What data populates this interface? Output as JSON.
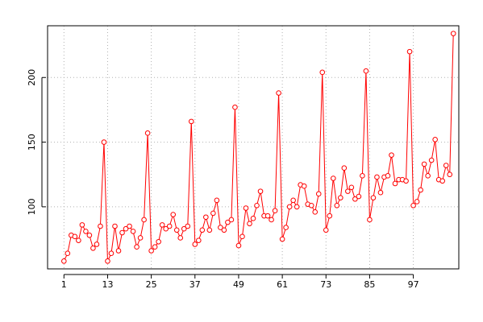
{
  "chart_data": {
    "type": "line",
    "title": "",
    "xlabel": "",
    "ylabel": "",
    "xlim": [
      -3.5,
      109.5
    ],
    "ylim": [
      52,
      240
    ],
    "x_ticks": [
      1,
      13,
      25,
      37,
      49,
      61,
      73,
      85,
      97
    ],
    "y_ticks": [
      100,
      150,
      200
    ],
    "x_tick_labels": [
      "1",
      "13",
      "25",
      "37",
      "49",
      "61",
      "73",
      "85",
      "97"
    ],
    "y_tick_labels": [
      "100",
      "150",
      "200"
    ],
    "grid": true,
    "legend": "none",
    "colors": {
      "series": "#ff0000",
      "grid": "#b0b0b0",
      "axis": "#000000"
    },
    "series": [
      {
        "x": [
          1,
          2,
          3,
          4,
          5,
          6,
          7,
          8,
          9,
          10,
          11,
          12,
          13,
          14,
          15,
          16,
          17,
          18,
          19,
          20,
          21,
          22,
          23,
          24,
          25,
          26,
          27,
          28,
          29,
          30,
          31,
          32,
          33,
          34,
          35,
          36,
          37,
          38,
          39,
          40,
          41,
          42,
          43,
          44,
          45,
          46,
          47,
          48,
          49,
          50,
          51,
          52,
          53,
          54,
          55,
          56,
          57,
          58,
          59,
          60,
          61,
          62,
          63,
          64,
          65,
          66,
          67,
          68,
          69,
          70,
          71,
          72,
          73,
          74,
          75,
          76,
          77,
          78,
          79,
          80,
          81,
          82,
          83,
          84,
          85,
          86,
          87,
          88,
          89,
          90,
          91,
          92,
          93,
          94,
          95,
          96,
          97,
          98,
          99,
          100,
          101,
          102,
          103,
          104,
          105,
          106,
          107,
          108
        ],
        "values": [
          58,
          64,
          78,
          77,
          74,
          86,
          81,
          78,
          68,
          71,
          85,
          150,
          58,
          64,
          85,
          66,
          80,
          83,
          85,
          81,
          69,
          76,
          90,
          157,
          66,
          69,
          73,
          86,
          83,
          85,
          94,
          82,
          76,
          83,
          85,
          166,
          71,
          74,
          82,
          92,
          82,
          95,
          105,
          84,
          82,
          88,
          90,
          177,
          70,
          77,
          99,
          87,
          91,
          101,
          112,
          93,
          93,
          90,
          97,
          188,
          75,
          84,
          100,
          105,
          100,
          117,
          116,
          102,
          101,
          96,
          110,
          204,
          82,
          93,
          122,
          101,
          107,
          130,
          112,
          115,
          106,
          108,
          124,
          205,
          90,
          107,
          123,
          111,
          123,
          124,
          140,
          118,
          121,
          121,
          120,
          220,
          101,
          104,
          113,
          133,
          124,
          136,
          152,
          121,
          120,
          132,
          125,
          234
        ]
      }
    ]
  }
}
